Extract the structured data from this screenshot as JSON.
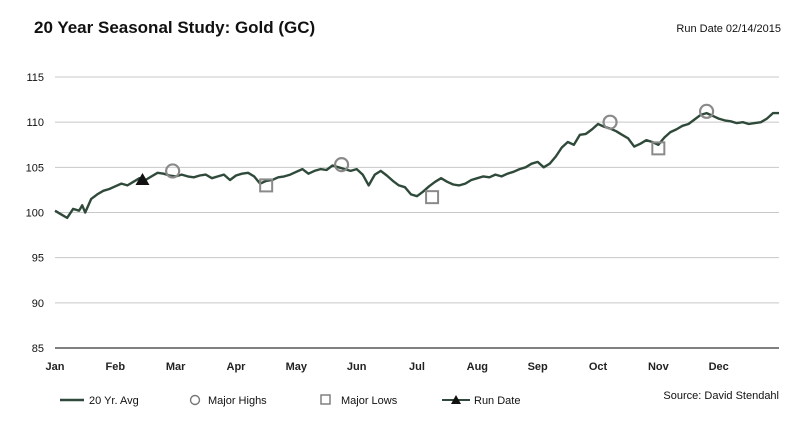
{
  "header": {
    "title": "20 Year Seasonal Study: Gold (GC)",
    "run_date": "Run Date 02/14/2015"
  },
  "footer": {
    "source": "Source: David Stendahl"
  },
  "colors": {
    "series_line": "#2f4a3a",
    "marker_high": "#8a8a8a",
    "marker_low": "#8a8a8a",
    "run_date_marker": "#111111",
    "grid": "#c8c8c8",
    "axis": "#000000"
  },
  "chart_data": {
    "type": "line",
    "title": "20 Year Seasonal Study: Gold (GC)",
    "xlabel": "",
    "ylabel": "",
    "ylim": [
      85,
      115
    ],
    "yticks": [
      85,
      90,
      95,
      100,
      105,
      110,
      115
    ],
    "xlim": [
      0,
      12
    ],
    "x_tick_labels": [
      "Jan",
      "Feb",
      "Mar",
      "Apr",
      "May",
      "Jun",
      "Jul",
      "Aug",
      "Sep",
      "Oct",
      "Nov",
      "Dec"
    ],
    "x_tick_positions": [
      0,
      1,
      2,
      3,
      4,
      5,
      6,
      7,
      8,
      9,
      10,
      11
    ],
    "grid": true,
    "legend_position": "bottom",
    "legend": [
      "20 Yr. Avg",
      "Major Highs",
      "Major Lows",
      "Run Date"
    ],
    "series": [
      {
        "name": "20 Yr. Avg",
        "x": [
          0,
          0.1,
          0.2,
          0.3,
          0.4,
          0.45,
          0.5,
          0.6,
          0.7,
          0.8,
          0.9,
          1.0,
          1.1,
          1.2,
          1.3,
          1.4,
          1.5,
          1.6,
          1.7,
          1.8,
          1.9,
          2.0,
          2.1,
          2.2,
          2.3,
          2.4,
          2.5,
          2.6,
          2.7,
          2.8,
          2.9,
          3.0,
          3.1,
          3.2,
          3.3,
          3.4,
          3.5,
          3.6,
          3.7,
          3.8,
          3.9,
          4.0,
          4.1,
          4.2,
          4.3,
          4.4,
          4.5,
          4.6,
          4.7,
          4.8,
          4.9,
          5.0,
          5.1,
          5.2,
          5.3,
          5.4,
          5.5,
          5.6,
          5.7,
          5.8,
          5.9,
          6.0,
          6.1,
          6.2,
          6.3,
          6.4,
          6.5,
          6.6,
          6.7,
          6.8,
          6.9,
          7.0,
          7.1,
          7.2,
          7.3,
          7.4,
          7.5,
          7.6,
          7.7,
          7.8,
          7.9,
          8.0,
          8.1,
          8.2,
          8.3,
          8.4,
          8.5,
          8.6,
          8.7,
          8.8,
          8.9,
          9.0,
          9.1,
          9.2,
          9.3,
          9.4,
          9.5,
          9.6,
          9.7,
          9.8,
          9.9,
          10.0,
          10.1,
          10.2,
          10.3,
          10.4,
          10.5,
          10.6,
          10.7,
          10.8,
          10.9,
          11.0,
          11.1,
          11.2,
          11.3,
          11.4,
          11.5,
          11.6,
          11.7,
          11.8,
          11.9,
          12.0
        ],
        "values": [
          100.2,
          99.8,
          99.4,
          100.4,
          100.2,
          100.8,
          100.0,
          101.5,
          102.0,
          102.4,
          102.6,
          102.9,
          103.2,
          103.0,
          103.4,
          103.8,
          103.6,
          104.0,
          104.4,
          104.3,
          104.1,
          104.0,
          104.2,
          104.0,
          103.9,
          104.1,
          104.2,
          103.8,
          104.0,
          104.2,
          103.6,
          104.1,
          104.3,
          104.4,
          104.0,
          103.2,
          103.5,
          103.6,
          103.9,
          104.0,
          104.2,
          104.5,
          104.8,
          104.3,
          104.6,
          104.8,
          104.7,
          105.2,
          105.0,
          104.8,
          104.6,
          104.8,
          104.2,
          103.0,
          104.2,
          104.6,
          104.1,
          103.5,
          103.0,
          102.8,
          102.0,
          101.8,
          102.3,
          102.9,
          103.4,
          103.8,
          103.4,
          103.1,
          103.0,
          103.2,
          103.6,
          103.8,
          104.0,
          103.9,
          104.2,
          104.0,
          104.3,
          104.5,
          104.8,
          105.0,
          105.4,
          105.6,
          105.0,
          105.4,
          106.2,
          107.2,
          107.8,
          107.5,
          108.6,
          108.7,
          109.2,
          109.8,
          109.5,
          109.3,
          109.0,
          108.6,
          108.2,
          107.3,
          107.6,
          108.0,
          107.8,
          107.5,
          108.3,
          108.9,
          109.2,
          109.6,
          109.8,
          110.3,
          110.8,
          111.0,
          110.7,
          110.4,
          110.2,
          110.1,
          109.9,
          110.0,
          109.8,
          109.9,
          110.0,
          110.4,
          111.0,
          111.0
        ]
      }
    ],
    "major_highs": [
      {
        "x": 1.95,
        "y": 104.6
      },
      {
        "x": 4.75,
        "y": 105.3
      },
      {
        "x": 9.2,
        "y": 110.0
      },
      {
        "x": 10.8,
        "y": 111.2
      }
    ],
    "major_lows": [
      {
        "x": 3.5,
        "y": 103.0
      },
      {
        "x": 6.25,
        "y": 101.7
      },
      {
        "x": 10.0,
        "y": 107.1
      }
    ],
    "run_date_point": {
      "x": 1.45,
      "y": 103.6
    }
  }
}
